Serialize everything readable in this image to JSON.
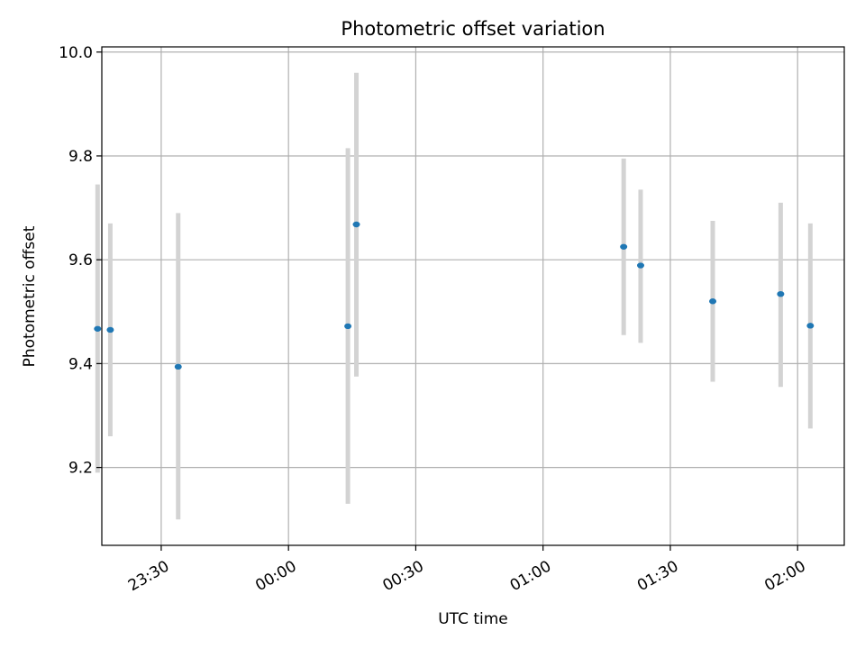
{
  "chart_data": {
    "type": "scatter",
    "title": "Photometric offset variation",
    "xlabel": "UTC time",
    "ylabel": "Photometric offset",
    "x_axis": "time",
    "xlim": [
      "23:16",
      "02:11"
    ],
    "ylim": [
      9.05,
      10.01
    ],
    "x_ticks": [
      "23:30",
      "00:00",
      "00:30",
      "01:00",
      "01:30",
      "02:00"
    ],
    "y_ticks": [
      9.2,
      9.4,
      9.6,
      9.8,
      10.0
    ],
    "grid": true,
    "legend": "none",
    "colors": {
      "point": "#1f77b4",
      "errorbar": "#d3d3d3"
    },
    "points": [
      {
        "x": "23:15",
        "y": 9.467,
        "yerr_low": 9.19,
        "yerr_high": 9.745
      },
      {
        "x": "23:18",
        "y": 9.465,
        "yerr_low": 9.26,
        "yerr_high": 9.67
      },
      {
        "x": "23:34",
        "y": 9.394,
        "yerr_low": 9.1,
        "yerr_high": 9.69
      },
      {
        "x": "00:14",
        "y": 9.472,
        "yerr_low": 9.13,
        "yerr_high": 9.815
      },
      {
        "x": "00:16",
        "y": 9.668,
        "yerr_low": 9.375,
        "yerr_high": 9.96
      },
      {
        "x": "01:19",
        "y": 9.625,
        "yerr_low": 9.455,
        "yerr_high": 9.795
      },
      {
        "x": "01:23",
        "y": 9.589,
        "yerr_low": 9.44,
        "yerr_high": 9.735
      },
      {
        "x": "01:40",
        "y": 9.52,
        "yerr_low": 9.365,
        "yerr_high": 9.675
      },
      {
        "x": "01:56",
        "y": 9.534,
        "yerr_low": 9.355,
        "yerr_high": 9.71
      },
      {
        "x": "02:03",
        "y": 9.473,
        "yerr_low": 9.275,
        "yerr_high": 9.67
      }
    ]
  }
}
